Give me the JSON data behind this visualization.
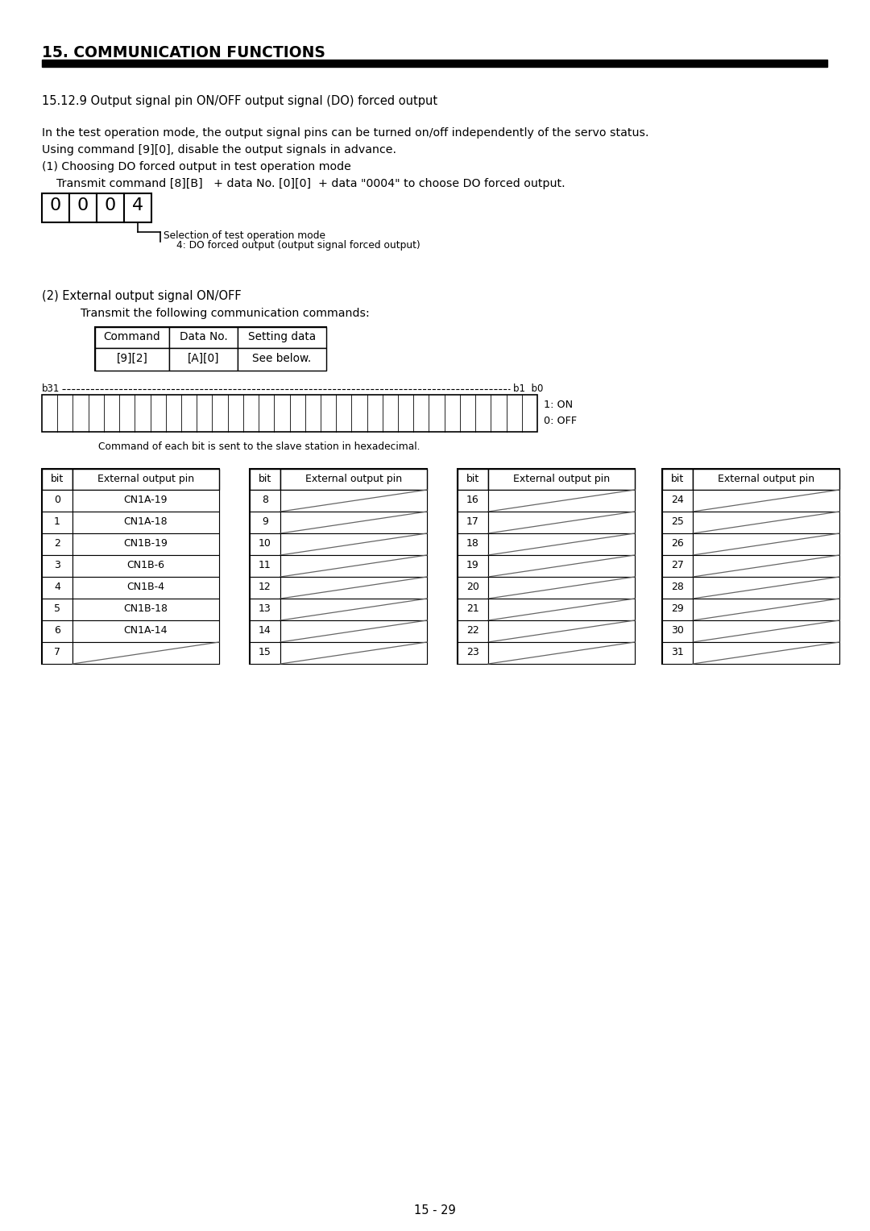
{
  "title": "15. COMMUNICATION FUNCTIONS",
  "section": "15.12.9 Output signal pin ON/OFF output signal (DO) forced output",
  "para1": "In the test operation mode, the output signal pins can be turned on/off independently of the servo status.",
  "para2": "Using command [9][0], disable the output signals in advance.",
  "para3": "(1) Choosing DO forced output in test operation mode",
  "para4": "    Transmit command [8][B]   + data No. [0][0]  + data \"0004\" to choose DO forced output.",
  "box_digits": [
    "0",
    "0",
    "0",
    "4"
  ],
  "box_note1": "Selection of test operation mode",
  "box_note2": "4: DO forced output (output signal forced output)",
  "para5": "(2) External output signal ON/OFF",
  "para6": "    Transmit the following communication commands:",
  "cmd_headers": [
    "Command",
    "Data No.",
    "Setting data"
  ],
  "cmd_row": [
    "[9][2]",
    "[A][0]",
    "See below."
  ],
  "bit_label_left": "b31",
  "bit_label_right": "b1  b0",
  "on_label": "1: ON",
  "off_label": "0: OFF",
  "bit_bar_note": "Command of each bit is sent to the slave station in hexadecimal.",
  "num_bits": 32,
  "table1_bits": [
    "0",
    "1",
    "2",
    "3",
    "4",
    "5",
    "6",
    "7"
  ],
  "table1_pins": [
    "CN1A-19",
    "CN1A-18",
    "CN1B-19",
    "CN1B-6",
    "CN1B-4",
    "CN1B-18",
    "CN1A-14",
    ""
  ],
  "table2_bits": [
    "8",
    "9",
    "10",
    "11",
    "12",
    "13",
    "14",
    "15"
  ],
  "table2_pins": [
    "",
    "",
    "",
    "",
    "",
    "",
    "",
    ""
  ],
  "table3_bits": [
    "16",
    "17",
    "18",
    "19",
    "20",
    "21",
    "22",
    "23"
  ],
  "table3_pins": [
    "",
    "",
    "",
    "",
    "",
    "",
    "",
    ""
  ],
  "table4_bits": [
    "24",
    "25",
    "26",
    "27",
    "28",
    "29",
    "30",
    "31"
  ],
  "table4_pins": [
    "",
    "",
    "",
    "",
    "",
    "",
    "",
    ""
  ],
  "page_number": "15 - 29",
  "bg_color": "#ffffff"
}
